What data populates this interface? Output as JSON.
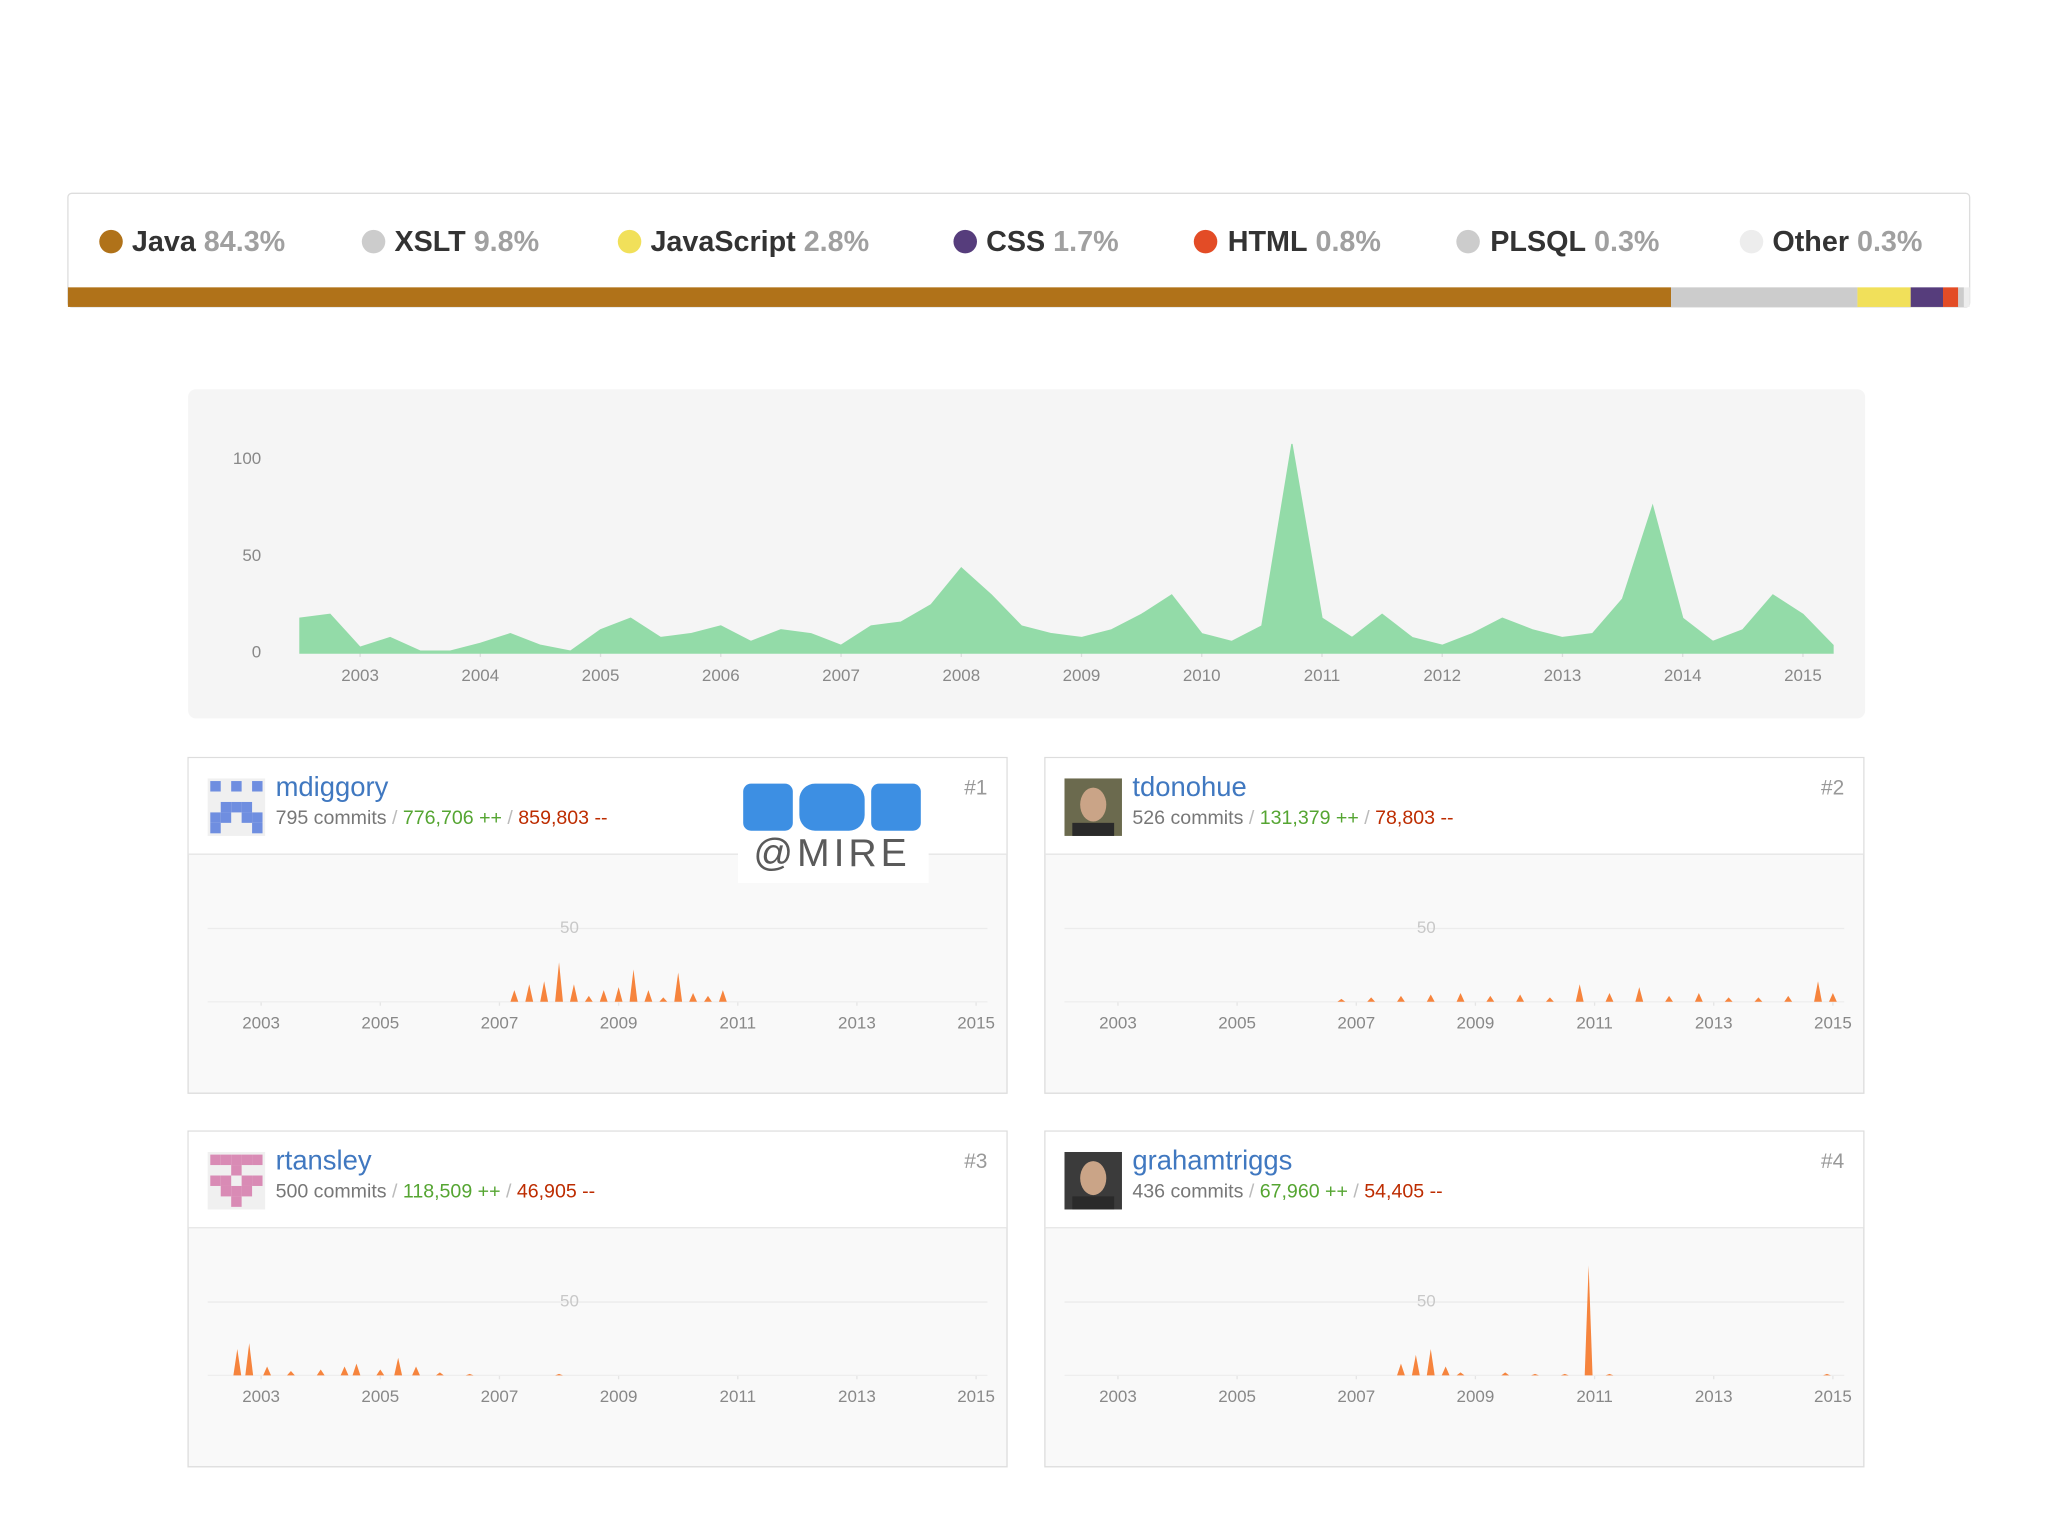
{
  "languages": {
    "names": [
      "Java",
      "XSLT",
      "JavaScript",
      "CSS",
      "HTML",
      "PLSQL",
      "Other"
    ],
    "values": [
      84.3,
      9.8,
      2.8,
      1.7,
      0.8,
      0.3,
      0.3
    ],
    "value_labels": [
      "84.3%",
      "9.8%",
      "2.8%",
      "1.7%",
      "0.8%",
      "0.3%",
      "0.3%"
    ],
    "colors": [
      "#b07219",
      "#cccccc",
      "#f1e05a",
      "#563d7c",
      "#e34c26",
      "#cccccc",
      "#ededed"
    ]
  },
  "chart_data": {
    "type": "area",
    "color": "#93dba8",
    "x": [
      2002.5,
      2002.75,
      2003,
      2003.25,
      2003.5,
      2003.75,
      2004,
      2004.25,
      2004.5,
      2004.75,
      2005,
      2005.25,
      2005.5,
      2005.75,
      2006,
      2006.25,
      2006.5,
      2006.75,
      2007,
      2007.25,
      2007.5,
      2007.75,
      2008,
      2008.25,
      2008.5,
      2008.75,
      2009,
      2009.25,
      2009.5,
      2009.75,
      2010,
      2010.25,
      2010.5,
      2010.75,
      2011,
      2011.25,
      2011.5,
      2011.75,
      2012,
      2012.25,
      2012.5,
      2012.75,
      2013,
      2013.25,
      2013.5,
      2013.75,
      2014,
      2014.25,
      2014.5,
      2014.75,
      2015,
      2015.25
    ],
    "values": [
      18,
      20,
      3,
      8,
      1,
      1,
      5,
      10,
      4,
      1,
      12,
      18,
      8,
      10,
      14,
      6,
      12,
      10,
      4,
      14,
      16,
      25,
      44,
      30,
      14,
      10,
      8,
      12,
      20,
      30,
      10,
      6,
      14,
      108,
      18,
      8,
      20,
      8,
      4,
      10,
      18,
      12,
      8,
      10,
      28,
      76,
      18,
      6,
      12,
      30,
      20,
      4
    ],
    "xlim": [
      2002.33,
      2015.3
    ],
    "ylim": [
      0,
      110
    ],
    "xticks": [
      2003,
      2004,
      2005,
      2006,
      2007,
      2008,
      2009,
      2010,
      2011,
      2012,
      2013,
      2014,
      2015
    ],
    "yticks": [
      0,
      50,
      100
    ],
    "grid": false
  },
  "contributor_chart": {
    "type": "spike",
    "color": "#f6843d",
    "xlim": [
      2002.3,
      2015.3
    ],
    "ylim": [
      0,
      90
    ],
    "xticks": [
      2003,
      2005,
      2007,
      2009,
      2011,
      2013,
      2015
    ],
    "yticks": [
      50
    ],
    "grid": true
  },
  "contributors": [
    {
      "rank": "#1",
      "name": "mdiggory",
      "commits": "795 commits",
      "additions": "776,706 ++",
      "deletions": "859,803 --",
      "x": [
        2007.25,
        2007.5,
        2007.75,
        2008,
        2008.25,
        2008.5,
        2008.75,
        2009,
        2009.25,
        2009.5,
        2009.75,
        2010,
        2010.25,
        2010.5,
        2010.75
      ],
      "values": [
        8,
        12,
        14,
        27,
        12,
        4,
        8,
        10,
        22,
        8,
        3,
        20,
        6,
        4,
        8
      ]
    },
    {
      "rank": "#2",
      "name": "tdonohue",
      "commits": "526 commits",
      "additions": "131,379 ++",
      "deletions": "78,803 --",
      "x": [
        2006.75,
        2007.25,
        2007.75,
        2008.25,
        2008.75,
        2009.25,
        2009.75,
        2010.25,
        2010.75,
        2011.25,
        2011.75,
        2012.25,
        2012.75,
        2013.25,
        2013.75,
        2014.25,
        2014.75,
        2015
      ],
      "values": [
        2,
        3,
        4,
        5,
        6,
        4,
        5,
        3,
        12,
        6,
        10,
        4,
        6,
        3,
        3,
        4,
        14,
        6
      ]
    },
    {
      "rank": "#3",
      "name": "rtansley",
      "commits": "500 commits",
      "additions": "118,509 ++",
      "deletions": "46,905 --",
      "x": [
        2002.6,
        2002.8,
        2003.1,
        2003.5,
        2004,
        2004.4,
        2004.6,
        2005,
        2005.3,
        2005.6,
        2006,
        2006.5,
        2008
      ],
      "values": [
        18,
        22,
        6,
        3,
        4,
        6,
        8,
        4,
        12,
        6,
        2,
        1,
        1
      ]
    },
    {
      "rank": "#4",
      "name": "grahamtriggs",
      "commits": "436 commits",
      "additions": "67,960 ++",
      "deletions": "54,405 --",
      "x": [
        2007.75,
        2008,
        2008.25,
        2008.5,
        2008.75,
        2009.5,
        2010,
        2010.5,
        2010.9,
        2011.25,
        2014.9
      ],
      "values": [
        8,
        14,
        18,
        6,
        2,
        2,
        1,
        1,
        75,
        1,
        1
      ]
    }
  ],
  "watermark": "@MIRE"
}
